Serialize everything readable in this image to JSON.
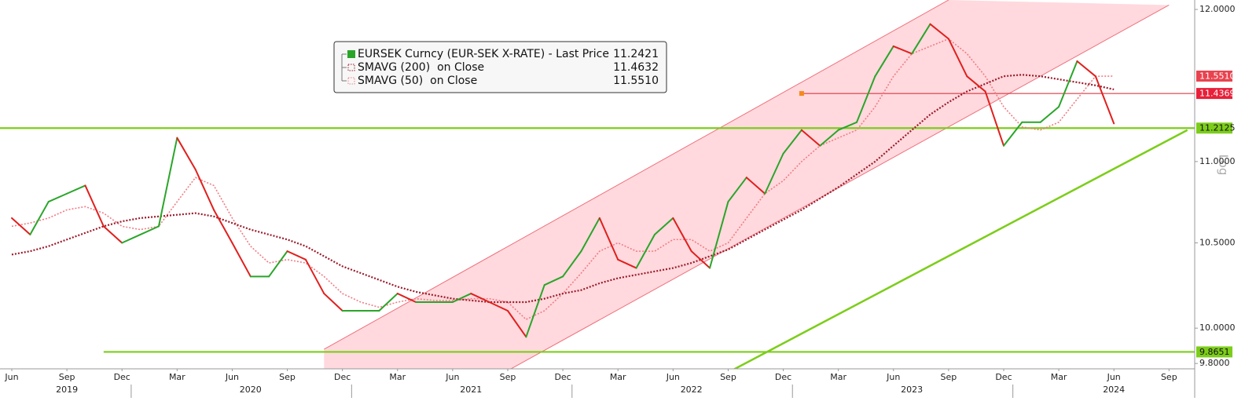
{
  "chart_data": {
    "type": "line",
    "log_scale": true,
    "scale_label": "Log",
    "x": [
      "2019-06",
      "2019-07",
      "2019-08",
      "2019-09",
      "2019-10",
      "2019-11",
      "2019-12",
      "2020-01",
      "2020-02",
      "2020-03",
      "2020-04",
      "2020-05",
      "2020-06",
      "2020-07",
      "2020-08",
      "2020-09",
      "2020-10",
      "2020-11",
      "2020-12",
      "2021-01",
      "2021-02",
      "2021-03",
      "2021-04",
      "2021-05",
      "2021-06",
      "2021-07",
      "2021-08",
      "2021-09",
      "2021-10",
      "2021-11",
      "2021-12",
      "2022-01",
      "2022-02",
      "2022-03",
      "2022-04",
      "2022-05",
      "2022-06",
      "2022-07",
      "2022-08",
      "2022-09",
      "2022-10",
      "2022-11",
      "2022-12",
      "2023-01",
      "2023-02",
      "2023-03",
      "2023-04",
      "2023-05",
      "2023-06",
      "2023-07",
      "2023-08",
      "2023-09",
      "2023-10",
      "2023-11",
      "2023-12",
      "2024-01",
      "2024-02",
      "2024-03",
      "2024-04",
      "2024-05",
      "2024-06"
    ],
    "series": [
      {
        "name": "EURSEK Curncy (EUR-SEK X-RATE) - Last Price",
        "last_label": "11.2421",
        "color": "#2aa52a",
        "up_color": "#2aa52a",
        "down_color": "#e0201e",
        "style": "price",
        "values": [
          10.65,
          10.55,
          10.75,
          10.8,
          10.85,
          10.6,
          10.5,
          10.55,
          10.6,
          11.15,
          10.95,
          10.7,
          10.5,
          10.3,
          10.3,
          10.45,
          10.4,
          10.2,
          10.1,
          10.1,
          10.1,
          10.2,
          10.15,
          10.15,
          10.15,
          10.2,
          10.15,
          10.1,
          9.95,
          10.25,
          10.3,
          10.45,
          10.65,
          10.4,
          10.35,
          10.55,
          10.65,
          10.45,
          10.35,
          10.75,
          10.9,
          10.8,
          11.05,
          11.2,
          11.1,
          11.2,
          11.25,
          11.55,
          11.75,
          11.7,
          11.9,
          11.8,
          11.55,
          11.45,
          11.1,
          11.25,
          11.25,
          11.35,
          11.65,
          11.55,
          11.2421
        ]
      },
      {
        "name": "SMAVG (200)  on Close",
        "last_label": "11.4632",
        "color": "#9b1a2a",
        "style": "dotted",
        "values": [
          10.43,
          10.45,
          10.48,
          10.52,
          10.56,
          10.6,
          10.63,
          10.65,
          10.66,
          10.67,
          10.68,
          10.66,
          10.62,
          10.58,
          10.55,
          10.52,
          10.48,
          10.42,
          10.36,
          10.32,
          10.28,
          10.24,
          10.21,
          10.19,
          10.17,
          10.16,
          10.15,
          10.15,
          10.15,
          10.17,
          10.2,
          10.22,
          10.26,
          10.29,
          10.31,
          10.33,
          10.35,
          10.38,
          10.42,
          10.46,
          10.52,
          10.58,
          10.64,
          10.7,
          10.77,
          10.84,
          10.92,
          11.0,
          11.1,
          11.2,
          11.3,
          11.38,
          11.45,
          11.5,
          11.55,
          11.56,
          11.55,
          11.53,
          11.51,
          11.49,
          11.4632
        ]
      },
      {
        "name": "SMAVG (50)  on Close",
        "last_label": "11.5510",
        "color": "#f07c84",
        "style": "dotted",
        "values": [
          10.6,
          10.62,
          10.65,
          10.7,
          10.72,
          10.68,
          10.6,
          10.58,
          10.6,
          10.75,
          10.9,
          10.85,
          10.65,
          10.48,
          10.38,
          10.4,
          10.38,
          10.3,
          10.2,
          10.15,
          10.12,
          10.15,
          10.17,
          10.16,
          10.16,
          10.17,
          10.17,
          10.15,
          10.05,
          10.1,
          10.2,
          10.32,
          10.45,
          10.5,
          10.45,
          10.45,
          10.52,
          10.52,
          10.45,
          10.5,
          10.65,
          10.8,
          10.88,
          11.0,
          11.1,
          11.15,
          11.2,
          11.35,
          11.55,
          11.7,
          11.75,
          11.8,
          11.7,
          11.55,
          11.35,
          11.22,
          11.2,
          11.25,
          11.4,
          11.55,
          11.551
        ]
      }
    ],
    "ylim": [
      9.77,
      12.065
    ],
    "yticks": [
      {
        "value": 9.8,
        "label": "9.8000"
      },
      {
        "value": 10,
        "label": "10.0000"
      },
      {
        "value": 10.5,
        "label": "10.5000"
      },
      {
        "value": 11,
        "label": "11.0000"
      },
      {
        "value": 12,
        "label": "12.0000"
      }
    ],
    "xticks": [
      {
        "value": "2019-06",
        "label": "Jun"
      },
      {
        "value": "2019-09",
        "label": "Sep"
      },
      {
        "value": "2019-12",
        "label": "Dec"
      },
      {
        "value": "2020-03",
        "label": "Mar"
      },
      {
        "value": "2020-06",
        "label": "Jun"
      },
      {
        "value": "2020-09",
        "label": "Sep"
      },
      {
        "value": "2020-12",
        "label": "Dec"
      },
      {
        "value": "2021-03",
        "label": "Mar"
      },
      {
        "value": "2021-06",
        "label": "Jun"
      },
      {
        "value": "2021-09",
        "label": "Sep"
      },
      {
        "value": "2021-12",
        "label": "Dec"
      },
      {
        "value": "2022-03",
        "label": "Mar"
      },
      {
        "value": "2022-06",
        "label": "Jun"
      },
      {
        "value": "2022-09",
        "label": "Sep"
      },
      {
        "value": "2022-12",
        "label": "Dec"
      },
      {
        "value": "2023-03",
        "label": "Mar"
      },
      {
        "value": "2023-06",
        "label": "Jun"
      },
      {
        "value": "2023-09",
        "label": "Sep"
      },
      {
        "value": "2023-12",
        "label": "Dec"
      },
      {
        "value": "2024-03",
        "label": "Mar"
      },
      {
        "value": "2024-06",
        "label": "Jun"
      },
      {
        "value": "2024-09",
        "label": "Sep"
      }
    ],
    "year_labels": [
      {
        "value": "2019-09",
        "label": "2019"
      },
      {
        "value": "2020-07",
        "label": "2020"
      },
      {
        "value": "2021-07",
        "label": "2021"
      },
      {
        "value": "2022-07",
        "label": "2022"
      },
      {
        "value": "2023-07",
        "label": "2023"
      },
      {
        "value": "2024-06",
        "label": "2024"
      }
    ],
    "channel": {
      "color": "#ffd9de",
      "line_color": "#f0707c",
      "upper": {
        "x": [
          "2020-11",
          "2023-09"
        ],
        "values": [
          9.88,
          12.065
        ]
      },
      "lower": {
        "x": [
          "2021-09",
          "2024-09"
        ],
        "values": [
          9.76,
          12.03
        ]
      }
    },
    "trendline": {
      "color": "#7ccd1a",
      "x": [
        "2022-09",
        "2024-10"
      ],
      "values": [
        9.75,
        11.2
      ]
    },
    "levels": [
      {
        "value": 11.2125,
        "color": "#7ccd1a",
        "from": "2019-05"
      },
      {
        "value": 9.8651,
        "color": "#7ccd1a",
        "from": "2019-11"
      },
      {
        "value": 11.4369,
        "color": "#d8202f",
        "from": "2023-01",
        "marker_color": "#f28a1c"
      }
    ],
    "price_tags": [
      {
        "value": 11.551,
        "label": "11.5510",
        "color": "#e8434f"
      },
      {
        "value": 11.4369,
        "label": "11.4369",
        "color": "#e8203a"
      },
      {
        "value": 11.2125,
        "label": "11.2125",
        "color": "#7ccd1a"
      },
      {
        "value": 9.8651,
        "label": "9.8651",
        "color": "#7ccd1a"
      }
    ]
  }
}
